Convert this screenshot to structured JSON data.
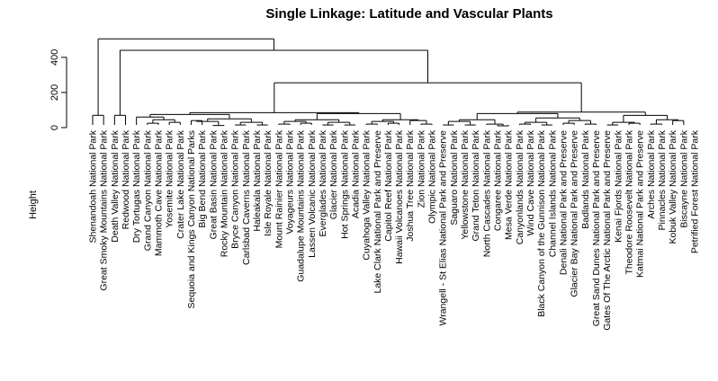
{
  "chart_data": {
    "type": "dendrogram",
    "title": "Single Linkage: Latitude and Vascular Plants",
    "ylabel": "Height",
    "xlabel": "",
    "ylim": [
      0,
      520
    ],
    "yticks": [
      0,
      200,
      400
    ],
    "grid": false,
    "leaves": [
      "Shenandoah National Park",
      "Great Smoky Mountains National Park",
      "Death Valley National Park",
      "Redwood National Park",
      "Dry Tortugas National Park",
      "Grand Canyon National Park",
      "Mammoth Cave National Park",
      "Yosemite National Park",
      "Crater Lake National Park",
      "Sequoia and Kings Canyon National Parks",
      "Big Bend National Park",
      "Great Basin National Park",
      "Rocky Mountain National Park",
      "Bryce Canyon National Park",
      "Carlsbad Caverns National Park",
      "Haleakala National Park",
      "Isle Royale National Park",
      "Mount Rainier National Park",
      "Voyageurs National Park",
      "Guadalupe Mountains National Park",
      "Lassen Volcanic National Park",
      "Everglades National Park",
      "Glacier National Park",
      "Hot Springs National Park",
      "Acadia National Park",
      "Cuyahoga Valley National Park",
      "Lake Clark National Park and Preserve",
      "Capitol Reef National Park",
      "Hawaii Volcanoes National Park",
      "Joshua Tree National Park",
      "Zion National Park",
      "Olympic National Park",
      "Wrangell - St Elias National Park and Preserve",
      "Saguaro National Park",
      "Yellowstone National Park",
      "Grand Teton National Park",
      "North Cascades National Park",
      "Congaree National Park",
      "Mesa Verde National Park",
      "Canyonlands National Park",
      "Wind Cave National Park",
      "Black Canyon of the Gunnison National Park",
      "Channel Islands National Park",
      "Denali National Park and Preserve",
      "Glacier Bay National Park and Preserve",
      "Badlands National Park",
      "Great Sand Dunes National Park and Preserve",
      "Gates Of The Arctic National Park and Preserve",
      "Kenai Fjords National Park",
      "Theodore Roosevelt National Park",
      "Katmai National Park and Preserve",
      "Arches National Park",
      "Pinnacles National Park",
      "Kobuk Valley National Park",
      "Biscayne National Park",
      "Petrified Forest National Park"
    ],
    "merges": [
      {
        "left": 1,
        "right": 2,
        "height": 70
      },
      {
        "left": 3,
        "right": 4,
        "height": 70
      },
      {
        "left": 6,
        "right": 7,
        "height": 25
      },
      {
        "left": 8,
        "right": 9,
        "height": 30
      },
      {
        "left": 10,
        "right": 11,
        "height": 40
      },
      {
        "left": 12,
        "right": 13,
        "height": 12
      },
      {
        "left": 14,
        "right": 15,
        "height": 15
      },
      {
        "left": 16,
        "right": 17,
        "height": 15
      },
      {
        "left": 18,
        "right": 19,
        "height": 20
      },
      {
        "left": 20,
        "right": 21,
        "height": 25
      },
      {
        "left": 22,
        "right": 23,
        "height": 15
      },
      {
        "left": 24,
        "right": 25,
        "height": 15
      },
      {
        "left": 26,
        "right": 27,
        "height": 20
      },
      {
        "left": 28,
        "right": 29,
        "height": 25
      },
      {
        "left": 31,
        "right": 32,
        "height": 20
      },
      {
        "left": 33,
        "right": 34,
        "height": 15
      },
      {
        "left": 35,
        "right": 36,
        "height": 15
      },
      {
        "left": 38,
        "right": 39,
        "height": 10
      },
      {
        "left": 40,
        "right": 41,
        "height": 20
      },
      {
        "left": 42,
        "right": 43,
        "height": 15
      },
      {
        "left": 44,
        "right": 45,
        "height": 25
      },
      {
        "left": 46,
        "right": 47,
        "height": 20
      },
      {
        "left": 48,
        "right": 49,
        "height": 15
      },
      {
        "left": 50,
        "right": 51,
        "height": 25
      },
      {
        "left": 52,
        "right": 53,
        "height": 20
      },
      {
        "left": 54,
        "right": 55,
        "height": 40
      },
      {
        "left": "n3",
        "right": "n4",
        "height": 45
      },
      {
        "left": "n5",
        "right": "n6",
        "height": 35
      },
      {
        "left": "n7",
        "right": "n8",
        "height": 30
      },
      {
        "left": "n9",
        "right": "n10",
        "height": 35
      },
      {
        "left": "n11",
        "right": "n12",
        "height": 30
      },
      {
        "left": "n13",
        "right": "n14",
        "height": 35
      },
      {
        "left": 30,
        "right": "n15",
        "height": 40
      },
      {
        "left": "n16",
        "right": "n17",
        "height": 35
      },
      {
        "left": 37,
        "right": "n18",
        "height": 20
      },
      {
        "left": "n19",
        "right": "n20",
        "height": 30
      },
      {
        "left": "n21",
        "right": "n22",
        "height": 40
      },
      {
        "left": "n23",
        "right": "n24",
        "height": 30
      },
      {
        "left": "n25",
        "right": "n26",
        "height": 45
      },
      {
        "left": 5,
        "right": "n27",
        "height": 60
      },
      {
        "left": "n28",
        "right": "n29",
        "height": 50
      },
      {
        "left": "n30",
        "right": "n31",
        "height": 45
      },
      {
        "left": "n32",
        "right": "n33",
        "height": 45
      },
      {
        "left": "n34",
        "right": "n35",
        "height": 45
      },
      {
        "left": "n36",
        "right": "n37",
        "height": 55
      },
      {
        "left": "n38",
        "right": "n39",
        "height": 70
      },
      {
        "left": "n40",
        "right": "n41",
        "height": 75
      },
      {
        "left": "n42",
        "right": "n43",
        "height": 80
      },
      {
        "left": "n44",
        "right": "n45",
        "height": 80
      },
      {
        "left": "n47",
        "right": "n48",
        "height": 85
      },
      {
        "left": "n49",
        "right": "n46",
        "height": 88
      },
      {
        "left": "n50",
        "right": "n51",
        "height": 255
      },
      {
        "left": "n2",
        "right": "n52",
        "height": 440
      },
      {
        "left": "n1",
        "right": "n53",
        "height": 505
      }
    ]
  }
}
